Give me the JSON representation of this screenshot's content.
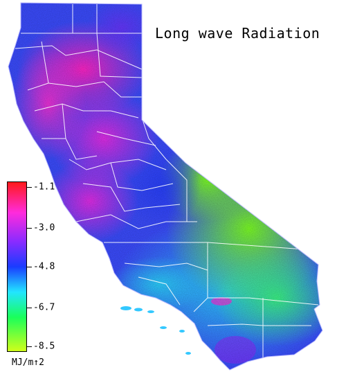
{
  "title": "Long wave Radiation",
  "legend": {
    "units": "MJ/m↑2",
    "ticks": [
      {
        "label": "-1.1",
        "value": -1.1
      },
      {
        "label": "-3.0",
        "value": -3.0
      },
      {
        "label": "-4.8",
        "value": -4.8
      },
      {
        "label": "-6.7",
        "value": -6.7
      },
      {
        "label": "-8.5",
        "value": -8.5
      }
    ],
    "range": [
      -8.5,
      -1.1
    ],
    "gradient_colors": [
      "#ff1a1a",
      "#ff2bdc",
      "#8a2bff",
      "#1a3cff",
      "#22e5ff",
      "#1aff5a",
      "#cfff1a"
    ]
  },
  "map_colors": {
    "background": "#ffffff",
    "county_lines": "#ffffff",
    "outline": "#b7b7ff"
  }
}
